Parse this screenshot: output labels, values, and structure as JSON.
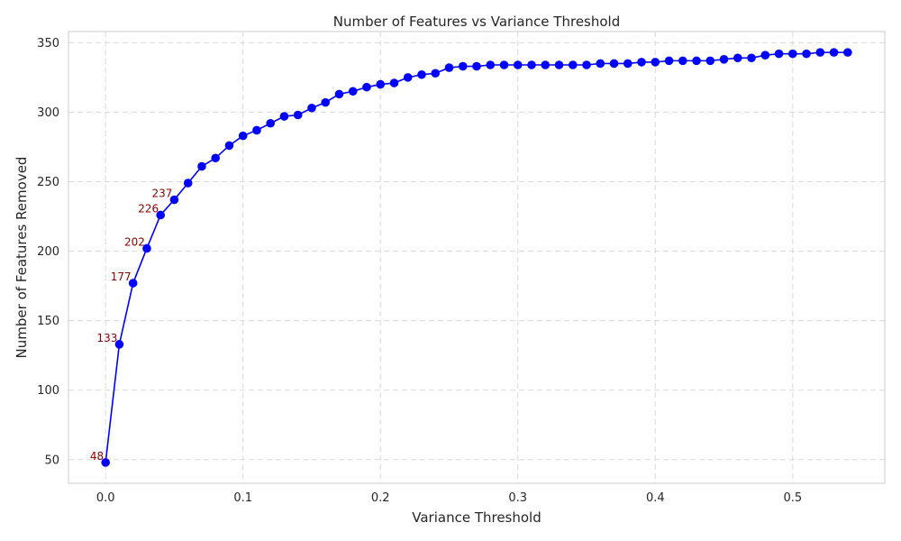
{
  "chart_data": {
    "type": "line",
    "title": "Number of Features vs Variance Threshold",
    "xlabel": "Variance Threshold",
    "ylabel": "Number of Features Removed",
    "xlim": [
      -0.027,
      0.567
    ],
    "ylim": [
      33,
      358
    ],
    "xticks": [
      0.0,
      0.1,
      0.2,
      0.3,
      0.4,
      0.5
    ],
    "xtick_labels": [
      "0.0",
      "0.1",
      "0.2",
      "0.3",
      "0.4",
      "0.5"
    ],
    "yticks": [
      50,
      100,
      150,
      200,
      250,
      300,
      350
    ],
    "ytick_labels": [
      "50",
      "100",
      "150",
      "200",
      "250",
      "300",
      "350"
    ],
    "grid": true,
    "grid_style": "dashed",
    "line_color": "#0000ff",
    "annotation_color": "#8b0000",
    "series": [
      {
        "x": [
          0.0,
          0.01,
          0.02,
          0.03,
          0.04,
          0.05,
          0.06,
          0.07,
          0.08,
          0.09,
          0.1,
          0.11,
          0.12,
          0.13,
          0.14,
          0.15,
          0.16,
          0.17,
          0.18,
          0.19,
          0.2,
          0.21,
          0.22,
          0.23,
          0.24,
          0.25,
          0.26,
          0.27,
          0.28,
          0.29,
          0.3,
          0.31,
          0.32,
          0.33,
          0.34,
          0.35,
          0.36,
          0.37,
          0.38,
          0.39,
          0.4,
          0.41,
          0.42,
          0.43,
          0.44,
          0.45,
          0.46,
          0.47,
          0.48,
          0.49,
          0.5,
          0.51,
          0.52,
          0.53,
          0.54
        ],
        "y": [
          48,
          133,
          177,
          202,
          226,
          237,
          249,
          261,
          267,
          276,
          283,
          287,
          292,
          297,
          298,
          303,
          307,
          313,
          315,
          318,
          320,
          321,
          325,
          327,
          328,
          332,
          333,
          333,
          334,
          334,
          334,
          334,
          334,
          334,
          334,
          334,
          335,
          335,
          335,
          336,
          336,
          337,
          337,
          337,
          337,
          338,
          339,
          339,
          341,
          342,
          342,
          342,
          343,
          343,
          343
        ]
      }
    ],
    "annotations": [
      {
        "x": 0.0,
        "y": 48,
        "text": "48"
      },
      {
        "x": 0.01,
        "y": 133,
        "text": "133"
      },
      {
        "x": 0.02,
        "y": 177,
        "text": "177"
      },
      {
        "x": 0.03,
        "y": 202,
        "text": "202"
      },
      {
        "x": 0.04,
        "y": 226,
        "text": "226"
      },
      {
        "x": 0.05,
        "y": 237,
        "text": "237"
      }
    ]
  }
}
